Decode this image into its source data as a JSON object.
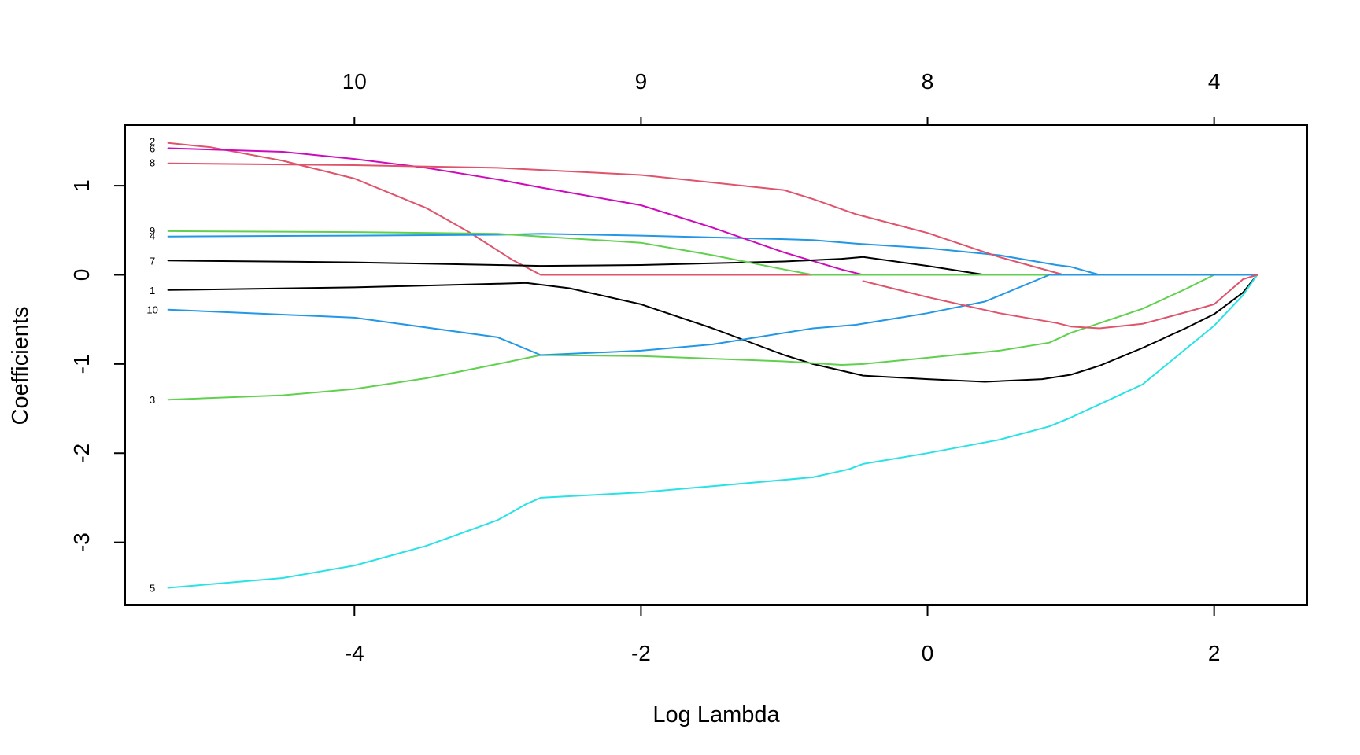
{
  "chart_data": {
    "type": "line",
    "title": "",
    "xlabel": "Log Lambda",
    "ylabel": "Coefficients",
    "xlim": [
      -5.6,
      2.65
    ],
    "ylim": [
      -3.7,
      1.68
    ],
    "x_ticks": [
      {
        "value": -4,
        "label": "-4"
      },
      {
        "value": -2,
        "label": "-2"
      },
      {
        "value": 0,
        "label": "0"
      },
      {
        "value": 2,
        "label": "2"
      }
    ],
    "y_ticks": [
      {
        "value": -3,
        "label": "-3"
      },
      {
        "value": -2,
        "label": "-2"
      },
      {
        "value": -1,
        "label": "-1"
      },
      {
        "value": 0,
        "label": "0"
      },
      {
        "value": 1,
        "label": "1"
      }
    ],
    "top_axis": [
      {
        "value": -4,
        "label": "10"
      },
      {
        "value": -2,
        "label": "9"
      },
      {
        "value": 0,
        "label": "8"
      },
      {
        "value": 2,
        "label": "4"
      }
    ],
    "grid": false,
    "series": [
      {
        "label": "1",
        "color": "#000000",
        "points": [
          [
            -5.3,
            -0.17
          ],
          [
            -4,
            -0.14
          ],
          [
            -3,
            -0.1
          ],
          [
            -2.8,
            -0.09
          ],
          [
            -2.5,
            -0.15
          ],
          [
            -2,
            -0.33
          ],
          [
            -1.5,
            -0.6
          ],
          [
            -1,
            -0.9
          ],
          [
            -0.8,
            -1
          ],
          [
            -0.45,
            -1.13
          ],
          [
            0,
            -1.17
          ],
          [
            0.4,
            -1.2
          ],
          [
            0.8,
            -1.17
          ],
          [
            1,
            -1.12
          ],
          [
            1.2,
            -1.02
          ],
          [
            1.5,
            -0.82
          ],
          [
            1.8,
            -0.6
          ],
          [
            2,
            -0.44
          ],
          [
            2.2,
            -0.2
          ],
          [
            2.3,
            0
          ]
        ]
      },
      {
        "label": "2",
        "color": "#DF536B",
        "points": [
          [
            -5.3,
            1.48
          ],
          [
            -5,
            1.43
          ],
          [
            -4.5,
            1.28
          ],
          [
            -4,
            1.08
          ],
          [
            -3.5,
            0.75
          ],
          [
            -3.2,
            0.48
          ],
          [
            -2.9,
            0.17
          ],
          [
            -2.7,
            0
          ],
          [
            2.3,
            0
          ]
        ]
      },
      {
        "label": "3",
        "color": "#61D04F",
        "points": [
          [
            -5.3,
            -1.4
          ],
          [
            -4.5,
            -1.35
          ],
          [
            -4,
            -1.28
          ],
          [
            -3.5,
            -1.16
          ],
          [
            -3,
            -1
          ],
          [
            -2.7,
            -0.9
          ],
          [
            -2,
            -0.91
          ],
          [
            -1,
            -0.97
          ],
          [
            -0.6,
            -1.01
          ],
          [
            -0.45,
            -1
          ],
          [
            0,
            -0.93
          ],
          [
            0.5,
            -0.85
          ],
          [
            0.85,
            -0.76
          ],
          [
            1,
            -0.65
          ],
          [
            1.5,
            -0.38
          ],
          [
            1.8,
            -0.16
          ],
          [
            2,
            0
          ],
          [
            2.3,
            0
          ]
        ]
      },
      {
        "label": "4",
        "color": "#2297E6",
        "points": [
          [
            -5.3,
            0.43
          ],
          [
            -4,
            0.44
          ],
          [
            -3,
            0.45
          ],
          [
            -2.7,
            0.46
          ],
          [
            -2,
            0.44
          ],
          [
            -1,
            0.4
          ],
          [
            -0.8,
            0.39
          ],
          [
            -0.5,
            0.35
          ],
          [
            0,
            0.3
          ],
          [
            0.5,
            0.22
          ],
          [
            0.9,
            0.11
          ],
          [
            1,
            0.09
          ],
          [
            1.2,
            0
          ],
          [
            2.3,
            0
          ]
        ]
      },
      {
        "label": "5",
        "color": "#28E2E5",
        "points": [
          [
            -5.3,
            -3.51
          ],
          [
            -4.5,
            -3.4
          ],
          [
            -4,
            -3.26
          ],
          [
            -3.5,
            -3.04
          ],
          [
            -3,
            -2.75
          ],
          [
            -2.8,
            -2.57
          ],
          [
            -2.7,
            -2.5
          ],
          [
            -2,
            -2.44
          ],
          [
            -1.5,
            -2.37
          ],
          [
            -0.8,
            -2.27
          ],
          [
            -0.55,
            -2.18
          ],
          [
            -0.45,
            -2.12
          ],
          [
            0,
            -2
          ],
          [
            0.5,
            -1.85
          ],
          [
            0.85,
            -1.7
          ],
          [
            1,
            -1.6
          ],
          [
            1.5,
            -1.23
          ],
          [
            2,
            -0.57
          ],
          [
            2.2,
            -0.23
          ],
          [
            2.3,
            0
          ]
        ]
      },
      {
        "label": "6",
        "color": "#CD0BBC",
        "points": [
          [
            -5.3,
            1.42
          ],
          [
            -4.5,
            1.38
          ],
          [
            -4,
            1.3
          ],
          [
            -3.5,
            1.2
          ],
          [
            -3,
            1.07
          ],
          [
            -2.7,
            0.98
          ],
          [
            -2,
            0.78
          ],
          [
            -1.5,
            0.53
          ],
          [
            -1,
            0.25
          ],
          [
            -0.6,
            0.06
          ],
          [
            -0.45,
            0
          ],
          [
            2.3,
            0
          ]
        ]
      },
      {
        "label": "7",
        "color": "#000000",
        "points": [
          [
            -5.3,
            0.16
          ],
          [
            -4,
            0.14
          ],
          [
            -3,
            0.11
          ],
          [
            -2.7,
            0.1
          ],
          [
            -2,
            0.11
          ],
          [
            -1,
            0.15
          ],
          [
            -0.6,
            0.18
          ],
          [
            -0.45,
            0.2
          ],
          [
            0,
            0.1
          ],
          [
            0.4,
            0
          ],
          [
            2.3,
            0
          ]
        ]
      },
      {
        "label": "8",
        "color": "#DF536B",
        "points": [
          [
            -5.3,
            1.25
          ],
          [
            -4,
            1.23
          ],
          [
            -3,
            1.2
          ],
          [
            -2,
            1.12
          ],
          [
            -1,
            0.95
          ],
          [
            -0.8,
            0.85
          ],
          [
            -0.5,
            0.68
          ],
          [
            0,
            0.47
          ],
          [
            0.5,
            0.2
          ],
          [
            0.95,
            0
          ],
          [
            1.2,
            0
          ],
          [
            2.3,
            0
          ]
        ]
      },
      {
        "label": "9",
        "color": "#61D04F",
        "points": [
          [
            -5.3,
            0.49
          ],
          [
            -4,
            0.48
          ],
          [
            -3,
            0.46
          ],
          [
            -2,
            0.36
          ],
          [
            -1.5,
            0.22
          ],
          [
            -1,
            0.06
          ],
          [
            -0.8,
            0
          ],
          [
            2.3,
            0
          ]
        ]
      },
      {
        "label": "10",
        "color": "#2297E6",
        "points": [
          [
            -5.3,
            -0.39
          ],
          [
            -4,
            -0.48
          ],
          [
            -3,
            -0.7
          ],
          [
            -2.7,
            -0.9
          ],
          [
            -2,
            -0.85
          ],
          [
            -1.5,
            -0.78
          ],
          [
            -0.8,
            -0.6
          ],
          [
            -0.5,
            -0.56
          ],
          [
            0,
            -0.43
          ],
          [
            0.4,
            -0.3
          ],
          [
            0.85,
            0
          ],
          [
            2.3,
            0
          ]
        ]
      },
      {
        "label": "",
        "color": "#DF536B",
        "points": [
          [
            -0.45,
            -0.07
          ],
          [
            0,
            -0.25
          ],
          [
            0.5,
            -0.43
          ],
          [
            0.9,
            -0.54
          ],
          [
            1,
            -0.58
          ],
          [
            1.2,
            -0.6
          ],
          [
            1.5,
            -0.55
          ],
          [
            1.8,
            -0.42
          ],
          [
            2,
            -0.33
          ],
          [
            2.2,
            -0.05
          ],
          [
            2.3,
            0
          ]
        ]
      }
    ],
    "series_labels": [
      {
        "text": "2",
        "y": 1.5
      },
      {
        "text": "6",
        "y": 1.42
      },
      {
        "text": "8",
        "y": 1.26
      },
      {
        "text": "9",
        "y": 0.5
      },
      {
        "text": "4",
        "y": 0.44
      },
      {
        "text": "7",
        "y": 0.16
      },
      {
        "text": "1",
        "y": -0.17
      },
      {
        "text": "10",
        "y": -0.39
      },
      {
        "text": "3",
        "y": -1.4
      },
      {
        "text": "5",
        "y": -3.51
      }
    ]
  }
}
